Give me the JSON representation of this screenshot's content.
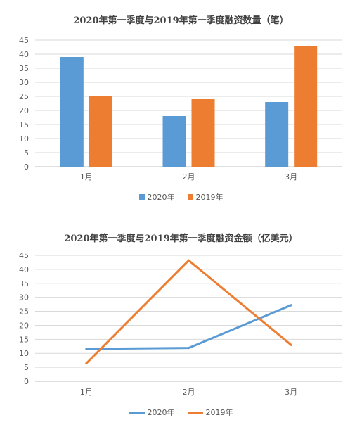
{
  "chart_data": [
    {
      "type": "bar",
      "title": "2020年第一季度与2019年第一季度融资数量（笔）",
      "categories": [
        "1月",
        "2月",
        "3月"
      ],
      "series": [
        {
          "name": "2020年",
          "values": [
            39,
            18,
            23
          ],
          "color": "#5B9BD5"
        },
        {
          "name": "2019年",
          "values": [
            25,
            24,
            43
          ],
          "color": "#ED7D31"
        }
      ],
      "yticks": [
        "0",
        "5",
        "10",
        "15",
        "20",
        "25",
        "30",
        "35",
        "40",
        "45"
      ],
      "ylim": [
        0,
        45
      ],
      "grid": true,
      "legend": "bottom"
    },
    {
      "type": "line",
      "title": "2020年第一季度与2019年第一季度融资金额（亿美元）",
      "categories": [
        "1月",
        "2月",
        "3月"
      ],
      "series": [
        {
          "name": "2020年",
          "values": [
            11.6,
            11.9,
            27.2
          ],
          "color": "#5B9BD5"
        },
        {
          "name": "2019年",
          "values": [
            6.4,
            43.2,
            13.0
          ],
          "color": "#ED7D31"
        }
      ],
      "yticks": [
        "0",
        "5",
        "10",
        "15",
        "20",
        "25",
        "30",
        "35",
        "40",
        "45"
      ],
      "ylim": [
        0,
        45
      ],
      "grid": true,
      "legend": "bottom"
    }
  ]
}
